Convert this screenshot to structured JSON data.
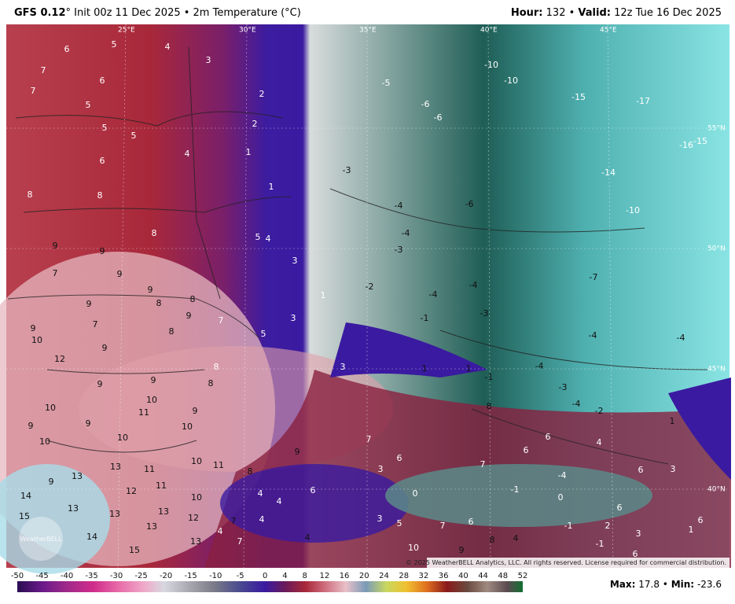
{
  "header": {
    "model": "GFS 0.12",
    "description": "° Init 00z 11 Dec 2025 • 2m Temperature (°C)",
    "hour_label": "Hour:",
    "hour": "132 •",
    "valid_label": "Valid:",
    "valid": "12z Tue 16 Dec 2025"
  },
  "map": {
    "lon_labels": [
      "25°E",
      "30°E",
      "35°E",
      "40°E",
      "45°E"
    ],
    "lat_labels": [
      "55°N",
      "50°N",
      "45°N",
      "40°N"
    ],
    "temps": [
      6,
      5,
      4,
      3,
      7,
      6,
      7,
      5,
      2,
      5,
      5,
      2,
      6,
      4,
      1,
      8,
      8,
      1,
      8,
      5,
      4,
      9,
      9,
      7,
      9,
      3,
      1,
      9,
      8,
      9,
      8,
      9,
      7,
      7,
      8,
      3,
      9,
      10,
      5,
      9,
      12,
      8,
      3,
      9,
      9,
      8,
      10,
      10,
      11,
      9,
      9,
      9,
      10,
      10,
      10,
      7,
      9,
      10,
      11,
      13,
      11,
      8,
      9,
      13,
      12,
      11,
      14,
      4,
      4,
      6,
      10,
      13,
      13,
      13,
      12,
      7,
      4,
      15,
      13,
      4,
      14,
      13,
      15,
      7,
      4,
      10,
      9,
      8,
      4,
      6,
      7,
      3,
      5,
      -10,
      -10,
      -5,
      -6,
      -6,
      -15,
      -17,
      -16,
      -15,
      -3,
      -14,
      -4,
      -6,
      -10,
      -4,
      -3,
      -2,
      -4,
      -4,
      -7,
      -3,
      -1,
      -4,
      -4,
      1,
      1,
      -1,
      -4,
      -3,
      -4,
      -2,
      8,
      1,
      6,
      6,
      4,
      6,
      3,
      7,
      6,
      3,
      -4,
      -1,
      0,
      0,
      6,
      -1,
      2,
      3,
      1,
      6,
      -1,
      6
    ],
    "copyright": "© 2025 WeatherBELL Analytics, LLC. All rights reserved. License required for commercial distribution.",
    "logo": "WeatherBELL"
  },
  "colorbar": {
    "ticks": [
      -50,
      -45,
      -40,
      -35,
      -30,
      -25,
      -20,
      -15,
      -10,
      -5,
      0,
      4,
      8,
      12,
      16,
      20,
      24,
      28,
      32,
      36,
      40,
      44,
      48,
      52
    ]
  },
  "footer": {
    "max_label": "Max:",
    "max": "17.8 •",
    "min_label": "Min:",
    "min": "-23.6"
  }
}
